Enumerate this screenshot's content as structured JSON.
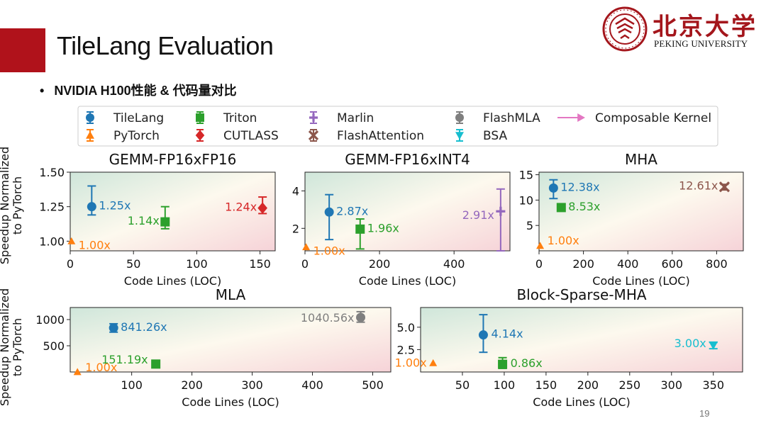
{
  "slide": {
    "title": "TileLang Evaluation",
    "bullet": "NVIDIA H100性能 & 代码量对比",
    "page_number": "19",
    "logo": {
      "cn": "北京大学",
      "en": "PEKING UNIVERSITY"
    }
  },
  "legend": [
    {
      "name": "TileLang",
      "color": "#1f77b4",
      "marker": "circle"
    },
    {
      "name": "PyTorch",
      "color": "#ff7f0e",
      "marker": "triangle-up"
    },
    {
      "name": "Triton",
      "color": "#2ca02c",
      "marker": "square"
    },
    {
      "name": "CUTLASS",
      "color": "#d62728",
      "marker": "diamond"
    },
    {
      "name": "Marlin",
      "color": "#9467bd",
      "marker": "plus"
    },
    {
      "name": "FlashAttention",
      "color": "#8c564b",
      "marker": "x"
    },
    {
      "name": "FlashMLA",
      "color": "#7f7f7f",
      "marker": "circle"
    },
    {
      "name": "BSA",
      "color": "#17becf",
      "marker": "triangle-down"
    },
    {
      "name": "Composable Kernel",
      "color": "#e377c2",
      "marker": "triangle-right"
    }
  ],
  "shared_ylabel": [
    "Speedup Normalized",
    "to PyTorch"
  ],
  "chart_data": [
    {
      "type": "scatter",
      "title": "GEMM-FP16xFP16",
      "xlabel": "Code Lines (LOC)",
      "xlim": [
        0,
        162
      ],
      "ylim": [
        0.93,
        1.5
      ],
      "xticks": [
        "0",
        "50",
        "100",
        "150"
      ],
      "xtick_values": [
        0,
        50,
        100,
        150
      ],
      "yticks": [
        "1.00",
        "1.25",
        "1.50"
      ],
      "ytick_values": [
        1.0,
        1.25,
        1.5
      ],
      "points": [
        {
          "series": "PyTorch",
          "x": 1,
          "y": 1.0,
          "label": "1.00x"
        },
        {
          "series": "TileLang",
          "x": 17,
          "y": 1.25,
          "err": [
            1.19,
            1.4
          ],
          "label": "1.25x"
        },
        {
          "series": "Triton",
          "x": 75,
          "y": 1.14,
          "err": [
            1.09,
            1.25
          ],
          "label": "1.14x"
        },
        {
          "series": "CUTLASS",
          "x": 152,
          "y": 1.24,
          "err": [
            1.2,
            1.32
          ],
          "label": "1.24x"
        }
      ]
    },
    {
      "type": "scatter",
      "title": "GEMM-FP16xINT4",
      "xlabel": "Code Lines (LOC)",
      "xlim": [
        0,
        550
      ],
      "ylim": [
        0.8,
        5.0
      ],
      "xticks": [
        "0",
        "200",
        "400"
      ],
      "xtick_values": [
        0,
        200,
        400
      ],
      "yticks": [
        "2",
        "4"
      ],
      "ytick_values": [
        2,
        4
      ],
      "points": [
        {
          "series": "PyTorch",
          "x": 3,
          "y": 1.0,
          "label": "1.00x"
        },
        {
          "series": "TileLang",
          "x": 65,
          "y": 2.87,
          "err": [
            1.4,
            3.8
          ],
          "label": "2.87x"
        },
        {
          "series": "Triton",
          "x": 148,
          "y": 1.96,
          "err": [
            0.9,
            2.5
          ],
          "label": "1.96x"
        },
        {
          "series": "Marlin",
          "x": 525,
          "y": 2.91,
          "err": [
            0.8,
            4.1
          ],
          "label": "2.91x"
        }
      ]
    },
    {
      "type": "scatter",
      "title": "MHA",
      "xlabel": "Code Lines (LOC)",
      "xlim": [
        0,
        920
      ],
      "ylim": [
        0,
        15.5
      ],
      "xticks": [
        "0",
        "200",
        "400",
        "600",
        "800"
      ],
      "xtick_values": [
        0,
        200,
        400,
        600,
        800
      ],
      "yticks": [
        "5",
        "10",
        "15"
      ],
      "ytick_values": [
        5,
        10,
        15
      ],
      "points": [
        {
          "series": "PyTorch",
          "x": 5,
          "y": 1.0,
          "label": "1.00x"
        },
        {
          "series": "TileLang",
          "x": 65,
          "y": 12.38,
          "err": [
            10.3,
            14.0
          ],
          "label": "12.38x"
        },
        {
          "series": "Triton",
          "x": 100,
          "y": 8.53,
          "err": [
            8.0,
            9.2
          ],
          "label": "8.53x"
        },
        {
          "series": "FlashAttention",
          "x": 835,
          "y": 12.61,
          "err": [
            12.0,
            13.1
          ],
          "label": "12.61x"
        }
      ]
    },
    {
      "type": "scatter",
      "title": "MLA",
      "xlabel": "Code Lines (LOC)",
      "xlim": [
        -2,
        530
      ],
      "ylim": [
        0,
        1230
      ],
      "xticks": [
        "100",
        "200",
        "300",
        "400",
        "500"
      ],
      "xtick_values": [
        100,
        200,
        300,
        400,
        500
      ],
      "yticks": [
        "500",
        "1000"
      ],
      "ytick_values": [
        500,
        1000
      ],
      "points": [
        {
          "series": "PyTorch",
          "x": 10,
          "y": 1.0,
          "label": "1.00x"
        },
        {
          "series": "TileLang",
          "x": 70,
          "y": 841.26,
          "err": [
            760,
            920
          ],
          "label": "841.26x"
        },
        {
          "series": "Triton",
          "x": 140,
          "y": 151.19,
          "err": [
            100,
            210
          ],
          "label": "151.19x"
        },
        {
          "series": "FlashMLA",
          "x": 480,
          "y": 1040.56,
          "err": [
            950,
            1150
          ],
          "label": "1040.56x"
        }
      ]
    },
    {
      "type": "scatter",
      "title": "Block-Sparse-MHA",
      "xlabel": "Code Lines (LOC)",
      "xlim": [
        0,
        385
      ],
      "ylim": [
        0,
        7.2
      ],
      "xticks": [
        "50",
        "100",
        "150",
        "200",
        "250",
        "300",
        "350"
      ],
      "xtick_values": [
        50,
        100,
        150,
        200,
        250,
        300,
        350
      ],
      "yticks": [
        "2.5",
        "5.0"
      ],
      "ytick_values": [
        2.5,
        5.0
      ],
      "points": [
        {
          "series": "PyTorch",
          "x": 15,
          "y": 1.0,
          "label": "1.00x"
        },
        {
          "series": "TileLang",
          "x": 75,
          "y": 4.14,
          "err": [
            2.2,
            6.4
          ],
          "label": "4.14x"
        },
        {
          "series": "Triton",
          "x": 98,
          "y": 0.86,
          "err": [
            0.4,
            1.6
          ],
          "label": "0.86x"
        },
        {
          "series": "BSA",
          "x": 350,
          "y": 3.0,
          "err": [
            2.6,
            3.3
          ],
          "label": "3.00x"
        }
      ]
    }
  ]
}
